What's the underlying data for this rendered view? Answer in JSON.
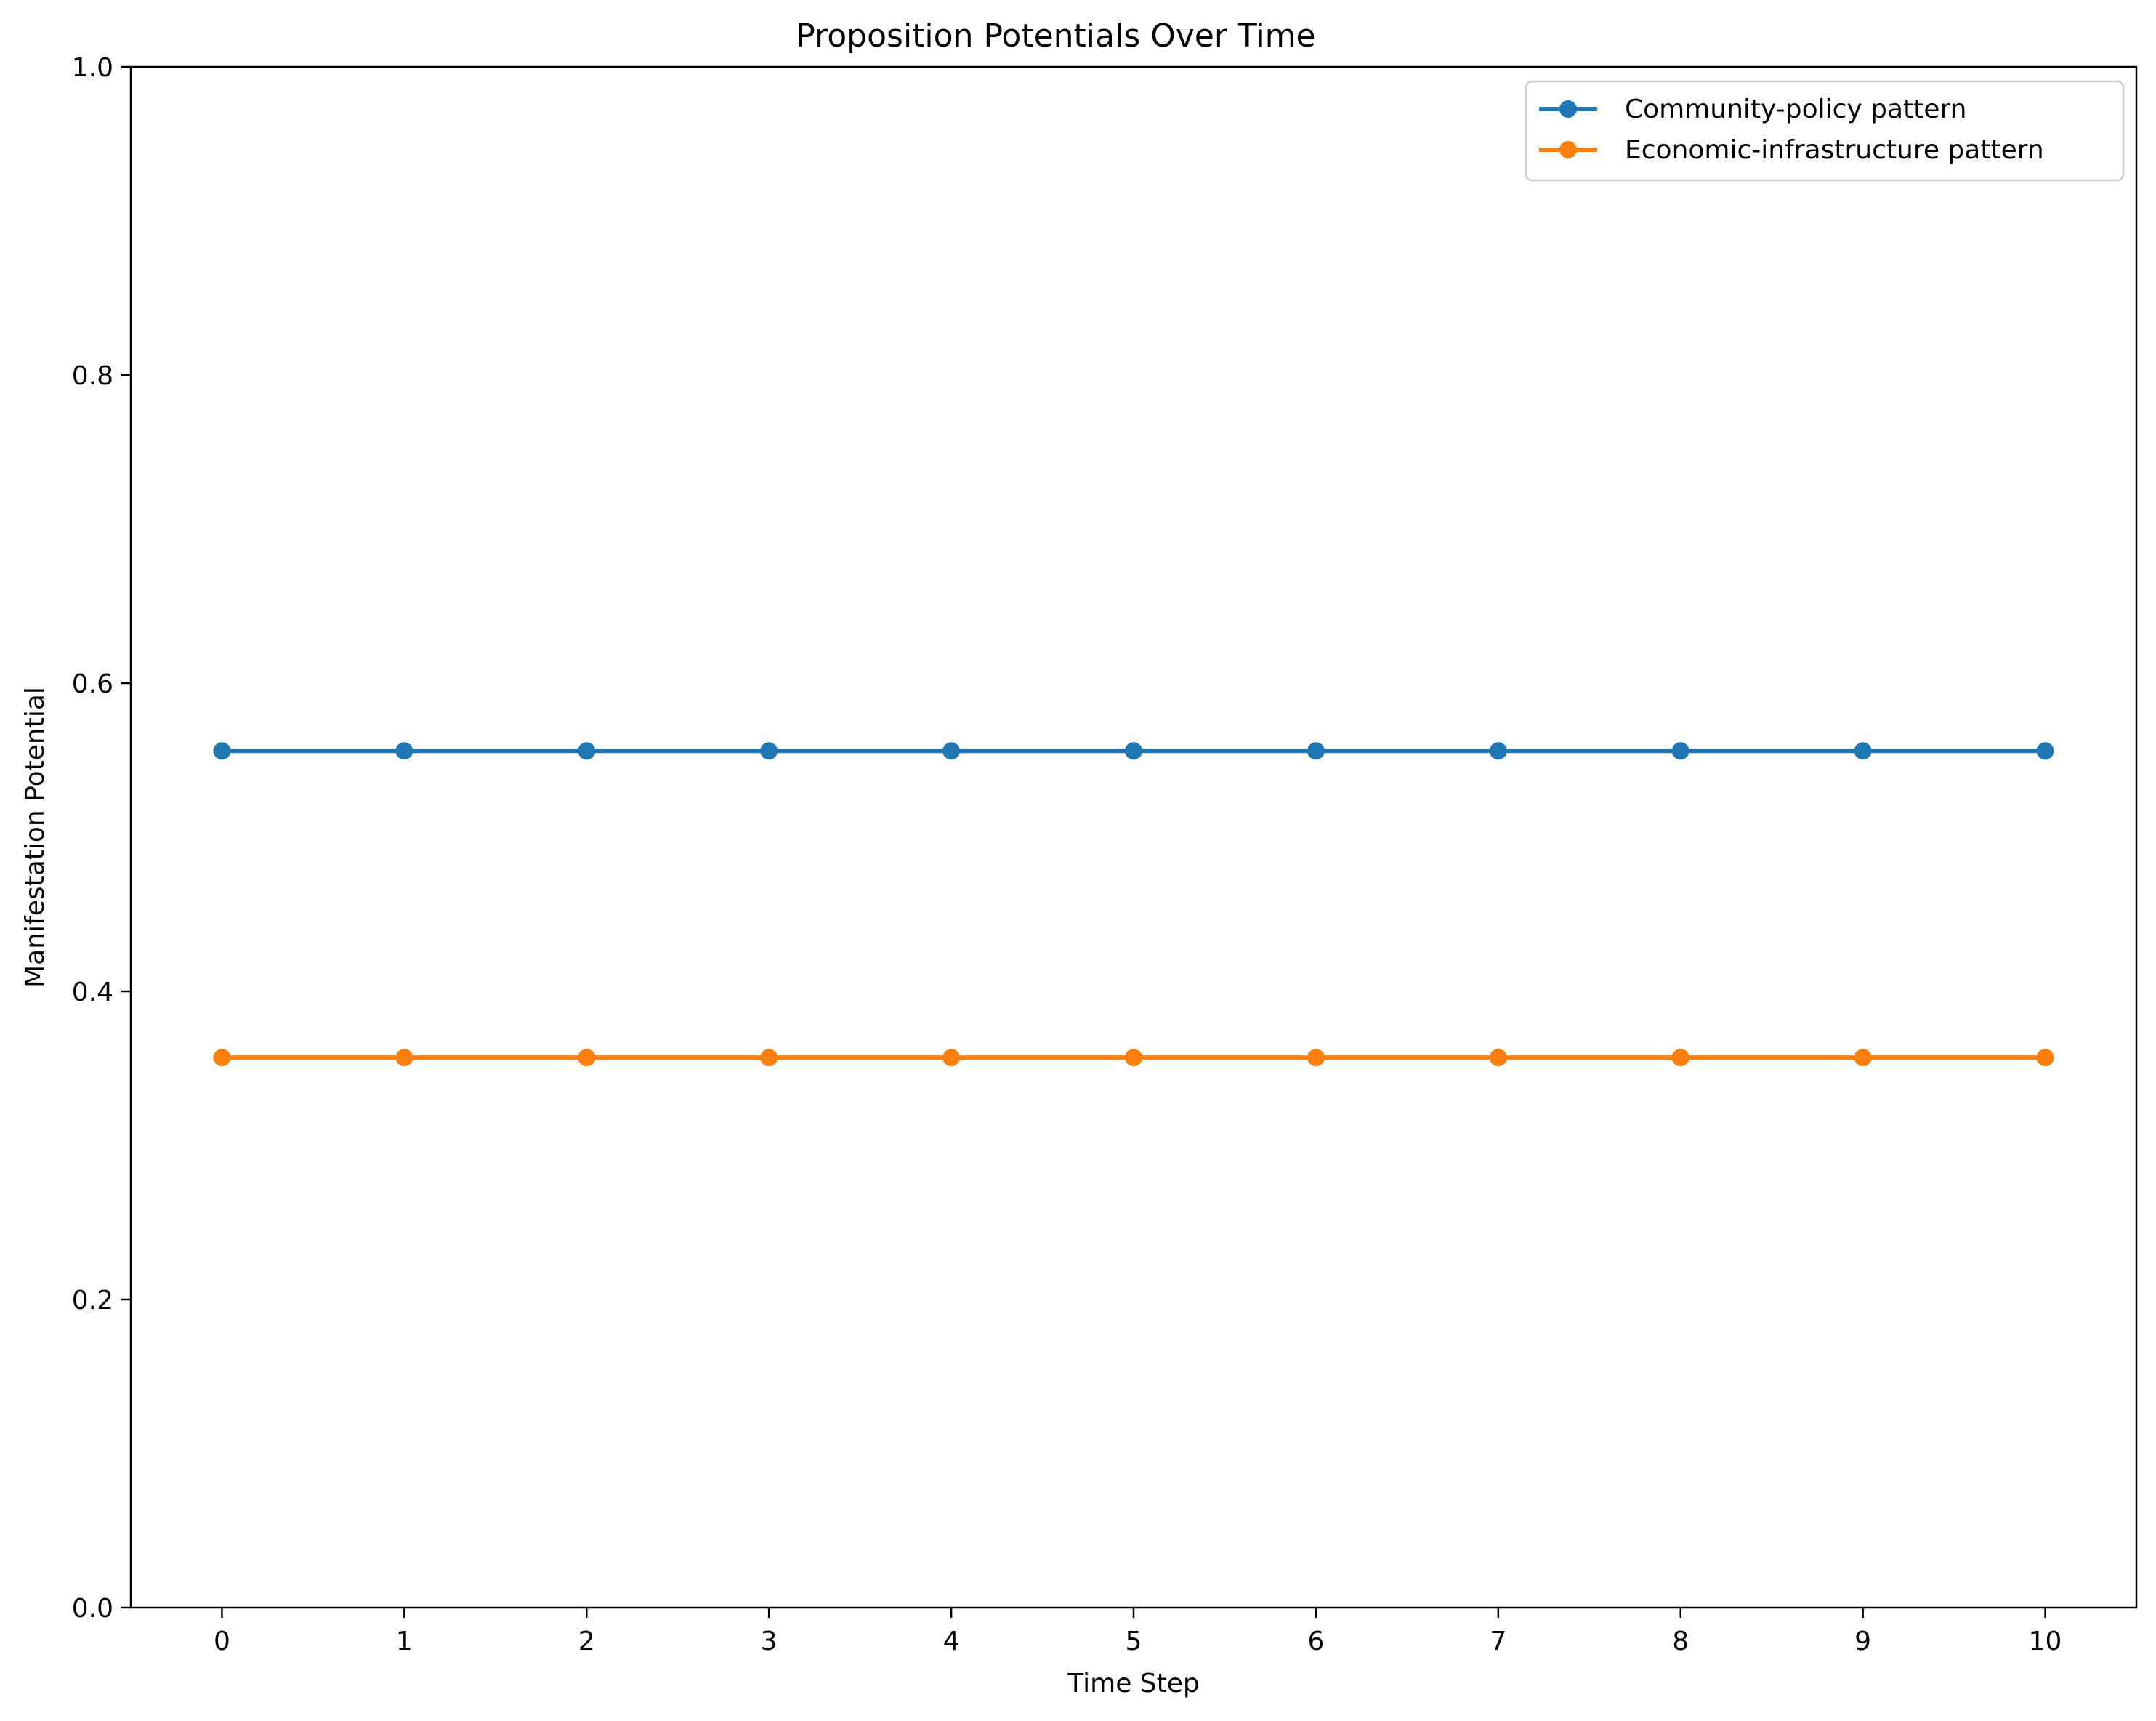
{
  "chart_data": {
    "type": "line",
    "title": "Proposition Potentials Over Time",
    "xlabel": "Time Step",
    "ylabel": "Manifestation Potential",
    "x": [
      0,
      1,
      2,
      3,
      4,
      5,
      6,
      7,
      8,
      9,
      10
    ],
    "x_ticks": [
      "0",
      "1",
      "2",
      "3",
      "4",
      "5",
      "6",
      "7",
      "8",
      "9",
      "10"
    ],
    "xlim": [
      -0.5,
      10.5
    ],
    "ylim": [
      0.0,
      1.0
    ],
    "y_ticks": [
      "0.0",
      "0.2",
      "0.4",
      "0.6",
      "0.8",
      "1.0"
    ],
    "grid": false,
    "legend_position": "top-right",
    "series": [
      {
        "name": "Community-policy pattern",
        "color": "#1f77b4",
        "marker": "circle",
        "values": [
          0.556,
          0.556,
          0.556,
          0.556,
          0.556,
          0.556,
          0.556,
          0.556,
          0.556,
          0.556,
          0.556
        ]
      },
      {
        "name": "Economic-infrastructure pattern",
        "color": "#ff7f0e",
        "marker": "circle",
        "values": [
          0.357,
          0.357,
          0.357,
          0.357,
          0.357,
          0.357,
          0.357,
          0.357,
          0.357,
          0.357,
          0.357
        ]
      }
    ]
  }
}
